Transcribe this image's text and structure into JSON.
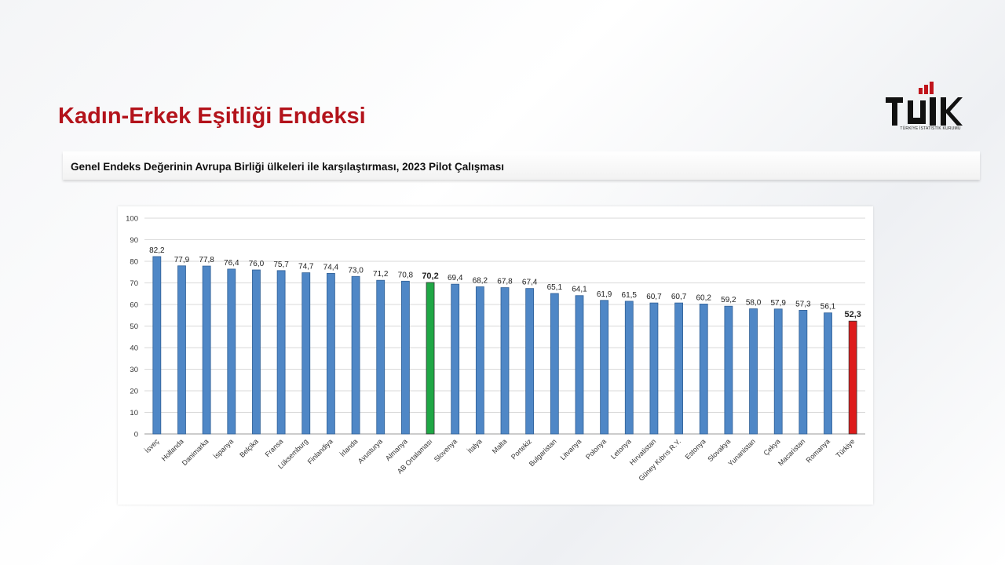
{
  "slide": {
    "title": "Kadın-Erkek Eşitliği Endeksi",
    "subtitle": "Genel Endeks Değerinin Avrupa Birliği ülkeleri ile karşılaştırması, 2023 Pilot Çalışması",
    "logo_text": "TÜİK",
    "logo_subtext": "TÜRKİYE İSTATİSTİK KURUMU"
  },
  "colors": {
    "title_red": "#b3131b",
    "bar_blue": "#4f87c6",
    "bar_green": "#1fa745",
    "bar_red": "#dd1c1c"
  },
  "chart_data": {
    "type": "bar",
    "categories": [
      "İsveç",
      "Hollanda",
      "Danimarka",
      "İspanya",
      "Belçika",
      "Fransa",
      "Lüksemburg",
      "Finlandiya",
      "İrlanda",
      "Avusturya",
      "Almanya",
      "AB Ortalaması",
      "Slovenya",
      "İtalya",
      "Malta",
      "Portekiz",
      "Bulgaristan",
      "Litvanya",
      "Polonya",
      "Letonya",
      "Hırvatistan",
      "Güney Kıbrıs R.Y.",
      "Estonya",
      "Slovakya",
      "Yunanistan",
      "Çekya",
      "Macaristan",
      "Romanya",
      "Türkiye"
    ],
    "values": [
      82.2,
      77.9,
      77.8,
      76.4,
      76.0,
      75.7,
      74.7,
      74.4,
      73.0,
      71.2,
      70.8,
      70.2,
      69.4,
      68.2,
      67.8,
      67.4,
      65.1,
      64.1,
      61.9,
      61.5,
      60.7,
      60.7,
      60.2,
      59.2,
      58.0,
      57.9,
      57.3,
      56.1,
      52.3
    ],
    "value_labels": [
      "82,2",
      "77,9",
      "77,8",
      "76,4",
      "76,0",
      "75,7",
      "74,7",
      "74,4",
      "73,0",
      "71,2",
      "70,8",
      "70,2",
      "69,4",
      "68,2",
      "67,8",
      "67,4",
      "65,1",
      "64,1",
      "61,9",
      "61,5",
      "60,7",
      "60,7",
      "60,2",
      "59,2",
      "58,0",
      "57,9",
      "57,3",
      "56,1",
      "52,3"
    ],
    "highlight": {
      "AB Ortalaması": "green",
      "Türkiye": "red"
    },
    "bold_labels": [
      "AB Ortalaması",
      "Türkiye"
    ],
    "ylim": [
      0,
      100
    ],
    "yticks": [
      0,
      10,
      20,
      30,
      40,
      50,
      60,
      70,
      80,
      90,
      100
    ],
    "grid": true,
    "title": "",
    "xlabel": "",
    "ylabel": ""
  }
}
